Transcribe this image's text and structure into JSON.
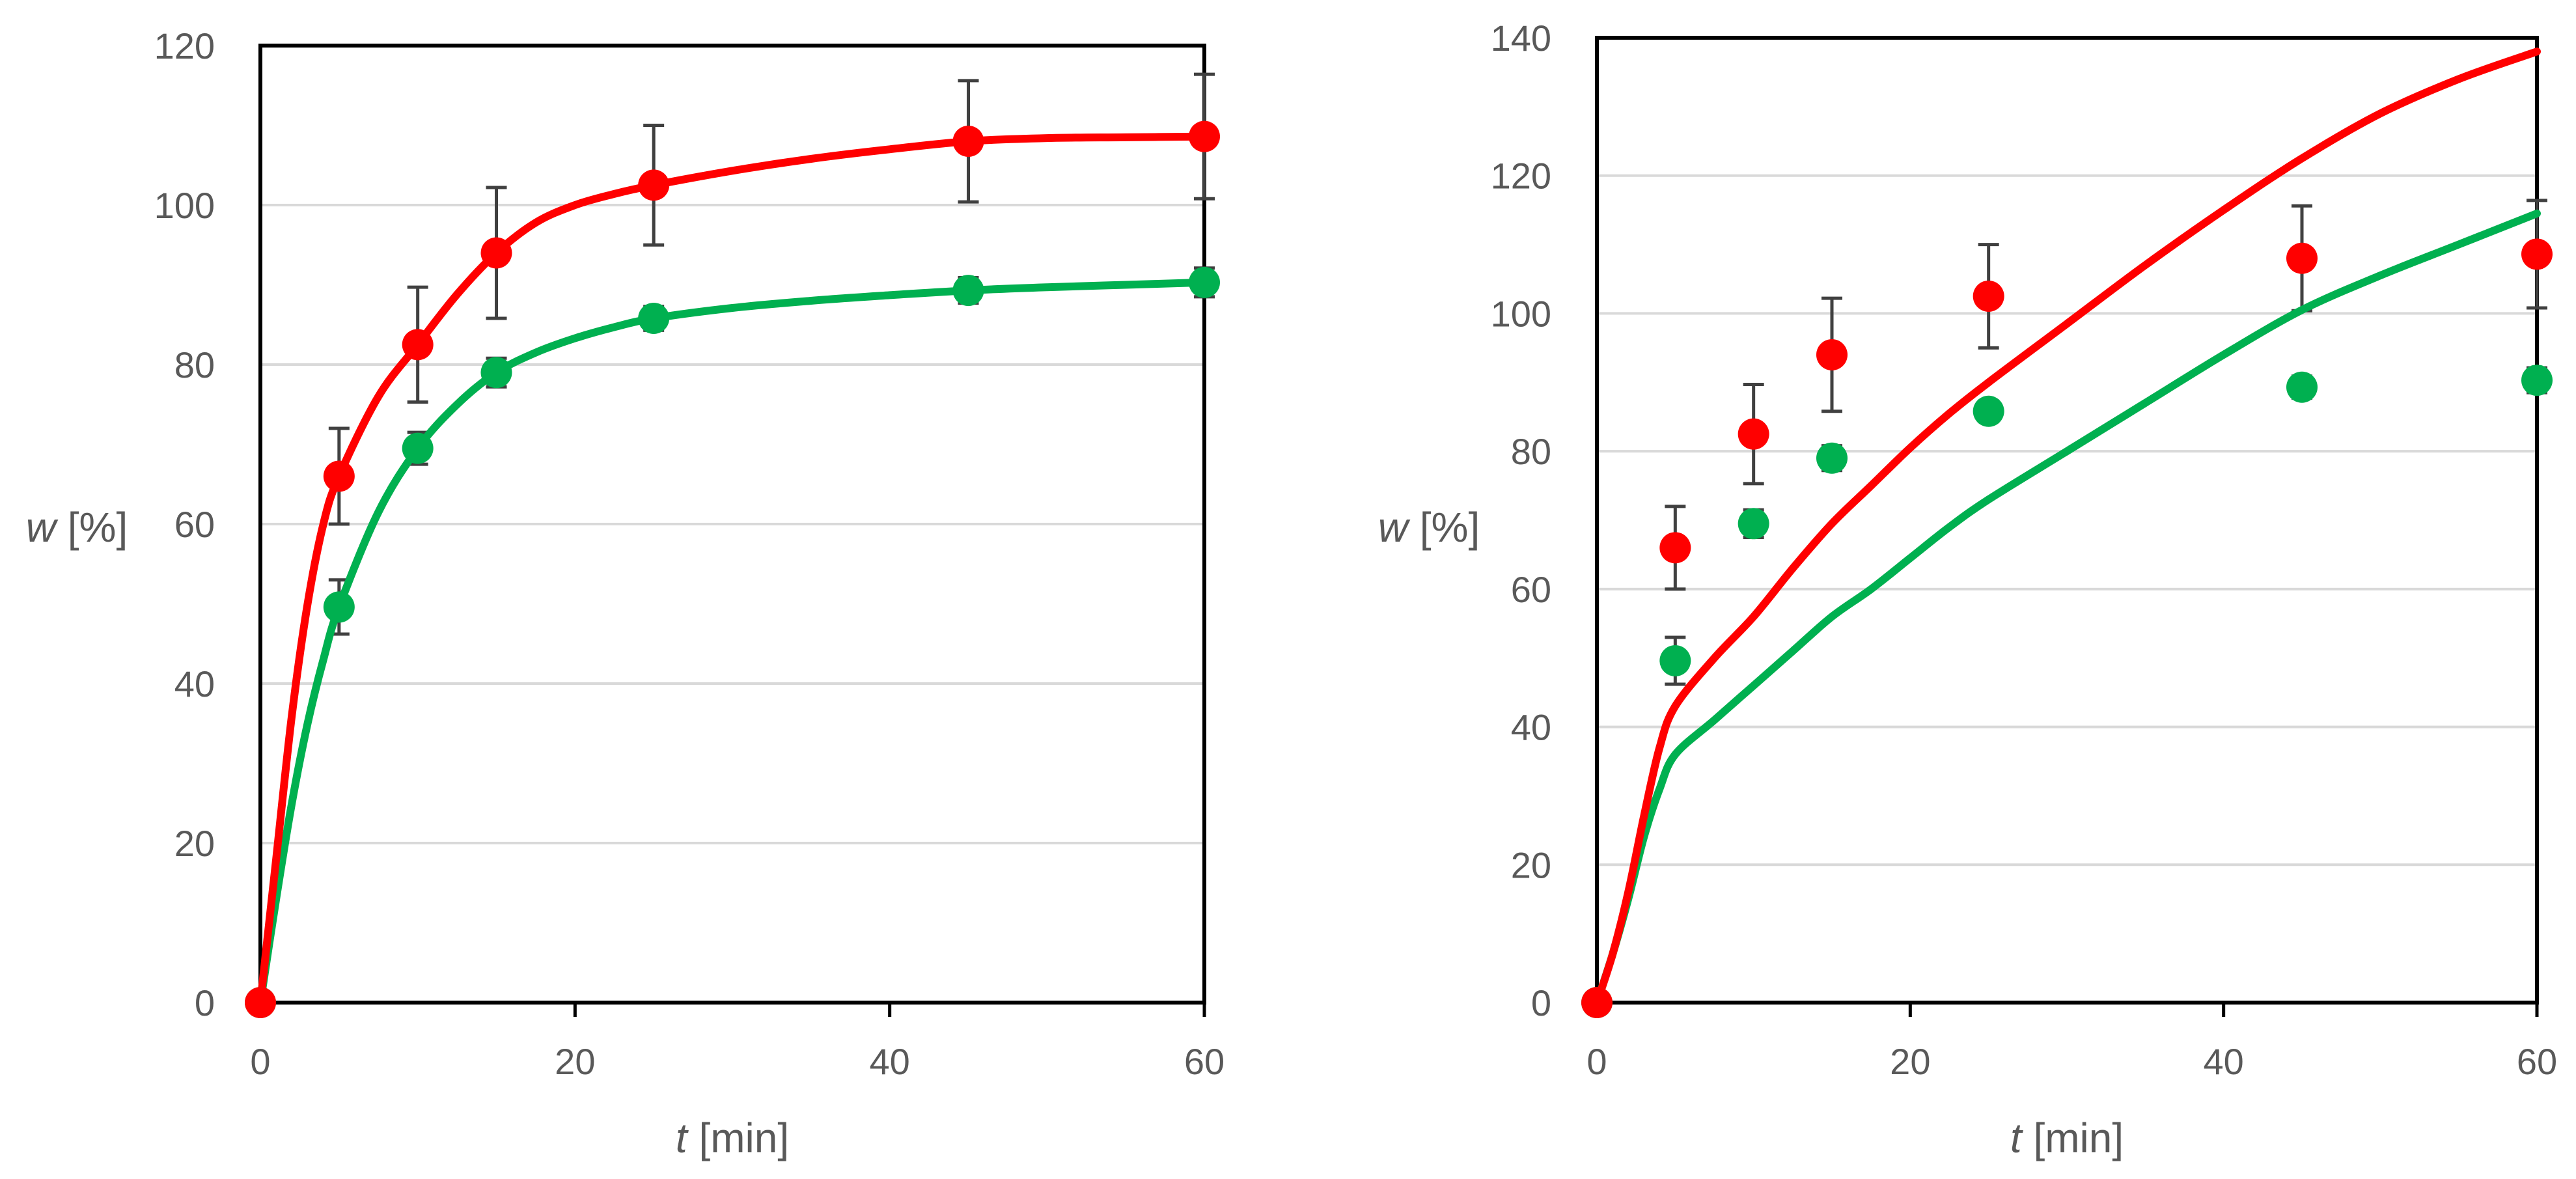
{
  "chart_data": [
    {
      "type": "scatter",
      "title": "",
      "xlabel": {
        "var": "t",
        "unit": "[min]"
      },
      "ylabel": {
        "var": "w",
        "unit": "[%]"
      },
      "xlim": [
        0,
        60
      ],
      "ylim": [
        0,
        120
      ],
      "xticks": [
        "0",
        "20",
        "40",
        "60"
      ],
      "yticks": [
        "0",
        "20",
        "40",
        "60",
        "80",
        "100",
        "120"
      ],
      "grid": "horizontal",
      "legend": "none",
      "series": [
        {
          "name": "red data",
          "color": "#ff0000",
          "points": [
            {
              "x": 0,
              "y": 0,
              "err": 0
            },
            {
              "x": 5,
              "y": 66,
              "err": 6
            },
            {
              "x": 10,
              "y": 82.5,
              "err": 7.2
            },
            {
              "x": 15,
              "y": 94,
              "err": 8.2
            },
            {
              "x": 25,
              "y": 102.5,
              "err": 7.5
            },
            {
              "x": 45,
              "y": 108,
              "err": 7.6
            },
            {
              "x": 60,
              "y": 108.6,
              "err": 7.8
            }
          ],
          "fit": [
            [
              0,
              0
            ],
            [
              1,
              18
            ],
            [
              2,
              36
            ],
            [
              3,
              50
            ],
            [
              4,
              60
            ],
            [
              5,
              66
            ],
            [
              7.5,
              76
            ],
            [
              10,
              82.5
            ],
            [
              12.5,
              88.8
            ],
            [
              15,
              94
            ],
            [
              17.5,
              97.8
            ],
            [
              20,
              100
            ],
            [
              22.5,
              101.4
            ],
            [
              25,
              102.5
            ],
            [
              30,
              104.3
            ],
            [
              35,
              105.8
            ],
            [
              40,
              107
            ],
            [
              45,
              108
            ],
            [
              50,
              108.4
            ],
            [
              55,
              108.5
            ],
            [
              60,
              108.6
            ]
          ]
        },
        {
          "name": "green data",
          "color": "#00b050",
          "points": [
            {
              "x": 0,
              "y": 0,
              "err": 0
            },
            {
              "x": 5,
              "y": 49.6,
              "err": 3.4
            },
            {
              "x": 10,
              "y": 69.5,
              "err": 2
            },
            {
              "x": 15,
              "y": 79,
              "err": 1.8
            },
            {
              "x": 25,
              "y": 85.8,
              "err": 1.5
            },
            {
              "x": 45,
              "y": 89.3,
              "err": 1.6
            },
            {
              "x": 60,
              "y": 90.3,
              "err": 1.8
            }
          ],
          "fit": [
            [
              0,
              0
            ],
            [
              1,
              13
            ],
            [
              2,
              25
            ],
            [
              3,
              35
            ],
            [
              4,
              43
            ],
            [
              5,
              49.6
            ],
            [
              7.5,
              61.5
            ],
            [
              10,
              69.5
            ],
            [
              12.5,
              75
            ],
            [
              15,
              79
            ],
            [
              17.5,
              81.5
            ],
            [
              20,
              83.3
            ],
            [
              22.5,
              84.7
            ],
            [
              25,
              85.8
            ],
            [
              30,
              87.1
            ],
            [
              35,
              88
            ],
            [
              40,
              88.7
            ],
            [
              45,
              89.3
            ],
            [
              50,
              89.7
            ],
            [
              55,
              90
            ],
            [
              60,
              90.3
            ]
          ]
        }
      ]
    },
    {
      "type": "scatter",
      "title": "",
      "xlabel": {
        "var": "t",
        "unit": "[min]"
      },
      "ylabel": {
        "var": "w",
        "unit": "[%]"
      },
      "xlim": [
        0,
        60
      ],
      "ylim": [
        0,
        140
      ],
      "xticks": [
        "0",
        "20",
        "40",
        "60"
      ],
      "yticks": [
        "0",
        "20",
        "40",
        "60",
        "80",
        "100",
        "120",
        "140"
      ],
      "grid": "horizontal",
      "legend": "none",
      "series": [
        {
          "name": "red data",
          "color": "#ff0000",
          "points": [
            {
              "x": 0,
              "y": 0,
              "err": 0
            },
            {
              "x": 5,
              "y": 66,
              "err": 6
            },
            {
              "x": 10,
              "y": 82.5,
              "err": 7.2
            },
            {
              "x": 15,
              "y": 94,
              "err": 8.2
            },
            {
              "x": 25,
              "y": 102.5,
              "err": 7.5
            },
            {
              "x": 45,
              "y": 108,
              "err": 7.6
            },
            {
              "x": 60,
              "y": 108.6,
              "err": 7.8
            }
          ],
          "fit": [
            [
              0,
              0
            ],
            [
              1,
              7
            ],
            [
              2,
              16
            ],
            [
              3,
              27
            ],
            [
              4,
              37
            ],
            [
              5,
              43
            ],
            [
              7.5,
              50
            ],
            [
              10,
              56
            ],
            [
              12.5,
              63
            ],
            [
              15,
              69.5
            ],
            [
              17.5,
              75
            ],
            [
              20,
              80.5
            ],
            [
              22.5,
              85.5
            ],
            [
              25,
              90
            ],
            [
              30,
              98.5
            ],
            [
              35,
              107
            ],
            [
              40,
              115
            ],
            [
              45,
              122.5
            ],
            [
              50,
              129
            ],
            [
              55,
              134
            ],
            [
              60,
              138
            ]
          ]
        },
        {
          "name": "green data",
          "color": "#00b050",
          "points": [
            {
              "x": 0,
              "y": 0,
              "err": 0
            },
            {
              "x": 5,
              "y": 49.6,
              "err": 3.4
            },
            {
              "x": 10,
              "y": 69.5,
              "err": 2
            },
            {
              "x": 15,
              "y": 79,
              "err": 1.8
            },
            {
              "x": 25,
              "y": 85.8,
              "err": 1.5
            },
            {
              "x": 45,
              "y": 89.3,
              "err": 1.6
            },
            {
              "x": 60,
              "y": 90.3,
              "err": 1.8
            }
          ],
          "fit": [
            [
              0,
              0
            ],
            [
              1,
              7
            ],
            [
              2,
              15
            ],
            [
              3,
              24
            ],
            [
              4,
              31
            ],
            [
              5,
              36
            ],
            [
              7.5,
              41
            ],
            [
              10,
              46
            ],
            [
              12.5,
              51
            ],
            [
              15,
              56
            ],
            [
              17.5,
              60
            ],
            [
              20,
              64.5
            ],
            [
              22.5,
              69
            ],
            [
              25,
              73
            ],
            [
              30,
              80
            ],
            [
              35,
              87
            ],
            [
              40,
              94
            ],
            [
              45,
              100.5
            ],
            [
              50,
              105.5
            ],
            [
              55,
              110
            ],
            [
              60,
              114.5
            ]
          ]
        }
      ]
    }
  ]
}
